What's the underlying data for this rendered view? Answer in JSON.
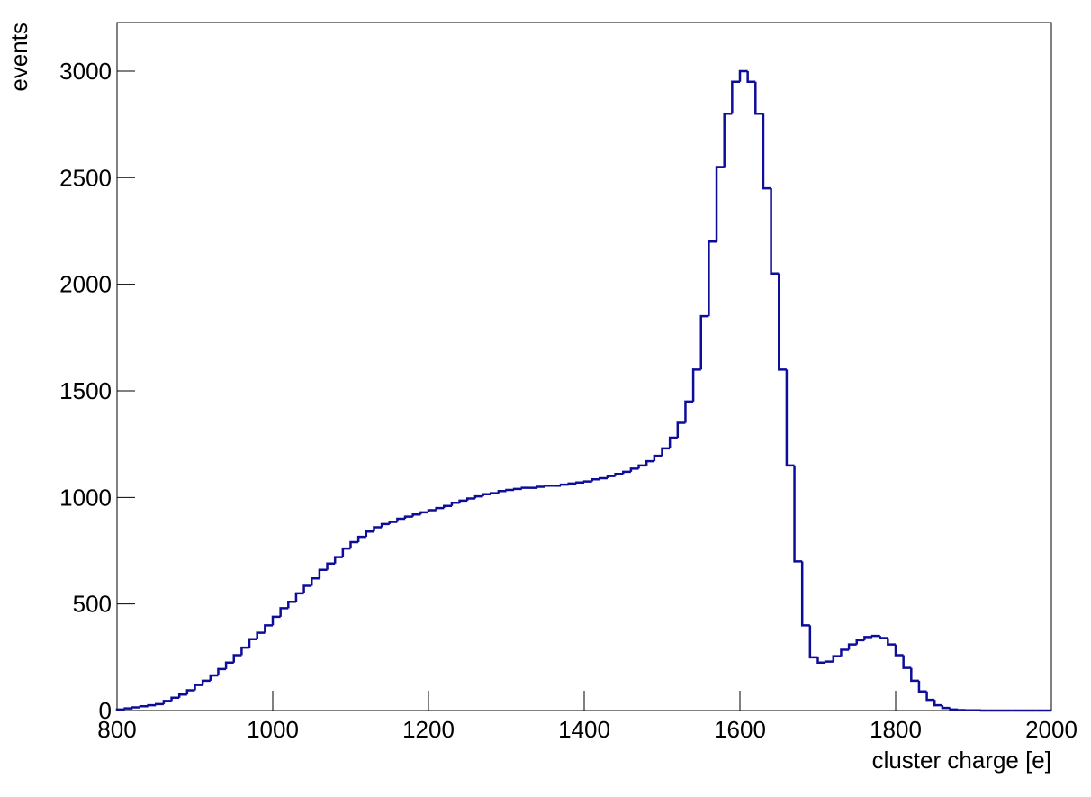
{
  "chart_data": {
    "type": "histogram",
    "xlabel": "cluster charge [e]",
    "ylabel": "events",
    "color": "#0d0d99",
    "bins": [
      800,
      810,
      820,
      830,
      840,
      850,
      860,
      870,
      880,
      890,
      900,
      910,
      920,
      930,
      940,
      950,
      960,
      970,
      980,
      990,
      1000,
      1010,
      1020,
      1030,
      1040,
      1050,
      1060,
      1070,
      1080,
      1090,
      1100,
      1110,
      1120,
      1130,
      1140,
      1150,
      1160,
      1170,
      1180,
      1190,
      1200,
      1210,
      1220,
      1230,
      1240,
      1250,
      1260,
      1270,
      1280,
      1290,
      1300,
      1310,
      1320,
      1330,
      1340,
      1350,
      1360,
      1370,
      1380,
      1390,
      1400,
      1410,
      1420,
      1430,
      1440,
      1450,
      1460,
      1470,
      1480,
      1490,
      1500,
      1510,
      1520,
      1530,
      1540,
      1550,
      1560,
      1570,
      1580,
      1590,
      1600,
      1610,
      1620,
      1630,
      1640,
      1650,
      1660,
      1670,
      1680,
      1690,
      1700,
      1710,
      1720,
      1730,
      1740,
      1750,
      1760,
      1770,
      1780,
      1790,
      1800,
      1810,
      1820,
      1830,
      1840,
      1850,
      1860,
      1870,
      1880,
      1890,
      1900,
      1910,
      1920,
      1930,
      1940,
      1950,
      1960,
      1970,
      1980,
      1990,
      2000
    ],
    "values": [
      5,
      10,
      15,
      20,
      25,
      30,
      45,
      60,
      75,
      95,
      120,
      140,
      165,
      195,
      225,
      260,
      295,
      335,
      365,
      400,
      440,
      480,
      510,
      550,
      585,
      620,
      660,
      690,
      720,
      760,
      790,
      815,
      840,
      860,
      875,
      885,
      900,
      910,
      920,
      930,
      940,
      950,
      960,
      975,
      985,
      995,
      1005,
      1015,
      1020,
      1030,
      1035,
      1040,
      1045,
      1045,
      1050,
      1055,
      1055,
      1060,
      1065,
      1070,
      1075,
      1085,
      1090,
      1100,
      1110,
      1120,
      1135,
      1150,
      1170,
      1195,
      1230,
      1280,
      1350,
      1450,
      1600,
      1850,
      2200,
      2550,
      2800,
      2950,
      3000,
      2950,
      2800,
      2450,
      2050,
      1600,
      1150,
      700,
      400,
      250,
      225,
      230,
      255,
      285,
      310,
      330,
      345,
      350,
      340,
      310,
      260,
      200,
      140,
      90,
      50,
      25,
      12,
      5,
      2,
      1,
      1,
      0,
      0,
      0,
      0,
      0,
      0,
      0,
      0,
      0
    ],
    "xlim": [
      800,
      2000
    ],
    "ylim": [
      0,
      3228
    ],
    "xticks": [
      800,
      1000,
      1200,
      1400,
      1600,
      1800,
      2000
    ],
    "yticks": [
      0,
      500,
      1000,
      1500,
      2000,
      2500,
      3000
    ]
  }
}
